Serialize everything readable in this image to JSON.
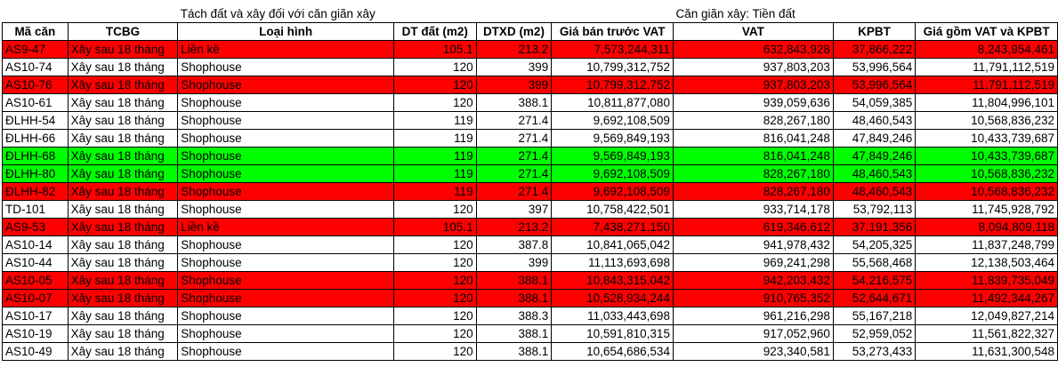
{
  "colors": {
    "red_row": "#ff0000",
    "green_row": "#00ff00"
  },
  "sheet": {
    "top_left_note": "Tách đất và xây đối với căn giãn xây",
    "top_right_note": "Căn giãn xây: Tiền đất",
    "headers": [
      "Mã căn",
      "TCBG",
      "Loại hình",
      "DT đất (m2)",
      "DTXD (m2)",
      "Giá bán trước VAT",
      "VAT",
      "KPBT",
      "Giá gồm VAT và KPBT"
    ],
    "rows": [
      {
        "highlight": "red",
        "cells": [
          "AS9-47",
          "Xây sau 18 tháng",
          "Liền kề",
          "105.1",
          "213.2",
          "7,573,244,311",
          "632,843,928",
          "37,866,222",
          "8,243,954,461"
        ]
      },
      {
        "highlight": "none",
        "cells": [
          "AS10-74",
          "Xây sau 18 tháng",
          "Shophouse",
          "120",
          "399",
          "10,799,312,752",
          "937,803,203",
          "53,996,564",
          "11,791,112,519"
        ]
      },
      {
        "highlight": "red",
        "cells": [
          "AS10-76",
          "Xây sau 18 tháng",
          "Shophouse",
          "120",
          "399",
          "10,799,312,752",
          "937,803,203",
          "53,996,564",
          "11,791,112,519"
        ]
      },
      {
        "highlight": "none",
        "cells": [
          "AS10-61",
          "Xây sau 18 tháng",
          "Shophouse",
          "120",
          "388.1",
          "10,811,877,080",
          "939,059,636",
          "54,059,385",
          "11,804,996,101"
        ]
      },
      {
        "highlight": "none",
        "cells": [
          "ĐLHH-54",
          "Xây sau 18 tháng",
          "Shophouse",
          "119",
          "271.4",
          "9,692,108,509",
          "828,267,180",
          "48,460,543",
          "10,568,836,232"
        ]
      },
      {
        "highlight": "none",
        "cells": [
          "ĐLHH-66",
          "Xây sau 18 tháng",
          "Shophouse",
          "119",
          "271.4",
          "9,569,849,193",
          "816,041,248",
          "47,849,246",
          "10,433,739,687"
        ]
      },
      {
        "highlight": "green",
        "cells": [
          "ĐLHH-68",
          "Xây sau 18 tháng",
          "Shophouse",
          "119",
          "271.4",
          "9,569,849,193",
          "816,041,248",
          "47,849,246",
          "10,433,739,687"
        ]
      },
      {
        "highlight": "green",
        "cells": [
          "ĐLHH-80",
          "Xây sau 18 tháng",
          "Shophouse",
          "119",
          "271.4",
          "9,692,108,509",
          "828,267,180",
          "48,460,543",
          "10,568,836,232"
        ]
      },
      {
        "highlight": "red",
        "cells": [
          "ĐLHH-82",
          "Xây sau 18 tháng",
          "Shophouse",
          "119",
          "271.4",
          "9,692,108,509",
          "828,267,180",
          "48,460,543",
          "10,568,836,232"
        ]
      },
      {
        "highlight": "none",
        "cells": [
          "TD-101",
          "Xây sau 18 tháng",
          "Shophouse",
          "120",
          "397",
          "10,758,422,501",
          "933,714,178",
          "53,792,113",
          "11,745,928,792"
        ]
      },
      {
        "highlight": "red",
        "cells": [
          "AS9-53",
          "Xây sau 18 tháng",
          "Liền kề",
          "105.1",
          "213.2",
          "7,438,271,150",
          "619,346,612",
          "37,191,356",
          "8,094,809,118"
        ]
      },
      {
        "highlight": "none",
        "cells": [
          "AS10-14",
          "Xây sau 18 tháng",
          "Shophouse",
          "120",
          "387.8",
          "10,841,065,042",
          "941,978,432",
          "54,205,325",
          "11,837,248,799"
        ]
      },
      {
        "highlight": "none",
        "cells": [
          "AS10-44",
          "Xây sau 18 tháng",
          "Shophouse",
          "120",
          "399",
          "11,113,693,698",
          "969,241,298",
          "55,568,468",
          "12,138,503,464"
        ]
      },
      {
        "highlight": "red",
        "cells": [
          "AS10-05",
          "Xây sau 18 tháng",
          "Shophouse",
          "120",
          "388.1",
          "10,843,315,042",
          "942,203,432",
          "54,216,575",
          "11,839,735,049"
        ]
      },
      {
        "highlight": "red",
        "cells": [
          "AS10-07",
          "Xây sau 18 tháng",
          "Shophouse",
          "120",
          "388.1",
          "10,528,934,244",
          "910,765,352",
          "52,644,671",
          "11,492,344,267"
        ]
      },
      {
        "highlight": "none",
        "cells": [
          "AS10-17",
          "Xây sau 18 tháng",
          "Shophouse",
          "120",
          "388.3",
          "11,033,443,698",
          "961,216,298",
          "55,167,218",
          "12,049,827,214"
        ]
      },
      {
        "highlight": "none",
        "cells": [
          "AS10-19",
          "Xây sau 18 tháng",
          "Shophouse",
          "120",
          "388.1",
          "10,591,810,315",
          "917,052,960",
          "52,959,052",
          "11,561,822,327"
        ]
      },
      {
        "highlight": "none",
        "cells": [
          "AS10-49",
          "Xây sau 18 tháng",
          "Shophouse",
          "120",
          "388.1",
          "10,654,686,534",
          "923,340,581",
          "53,273,433",
          "11,631,300,548"
        ]
      }
    ]
  }
}
